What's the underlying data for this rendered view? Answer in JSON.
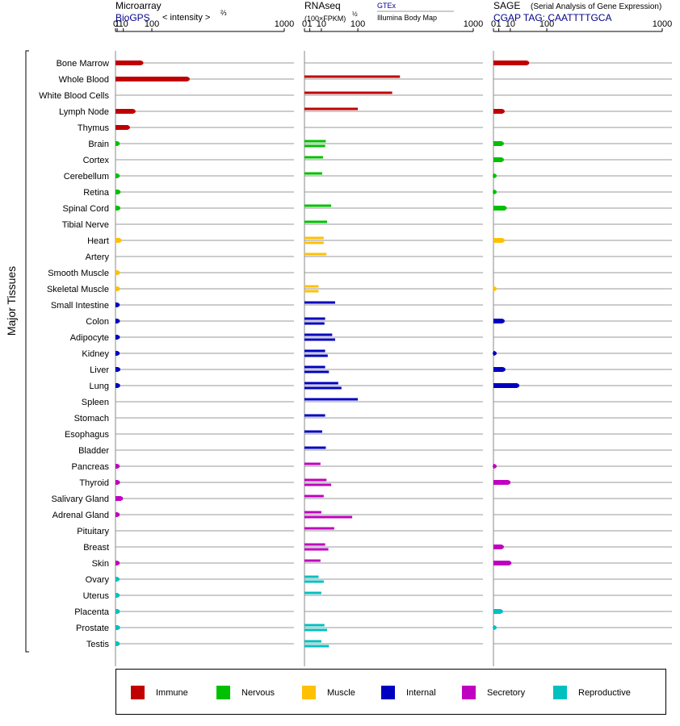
{
  "headers": {
    "microarray": {
      "title": "Microarray",
      "source": "BioGPS",
      "unit": "< intensity >",
      "unit_exp": "⅔"
    },
    "rnaseq": {
      "title": "RNAseq",
      "unit": "(100×FPKM)",
      "unit_exp": "½",
      "legend_a": "GTEx",
      "legend_b": "Illumina Body Map"
    },
    "sage": {
      "title": "SAGE",
      "subtitle": "(Serial Analysis of Gene Expression)",
      "tag": "CGAP  TAG: CAATTTTGCA"
    }
  },
  "y_axis_label": "Major Tissues",
  "colors": {
    "Immune": "#c00000",
    "Nervous": "#00c000",
    "Muscle": "#ffc000",
    "Internal": "#0000c0",
    "Secretory": "#c000c0",
    "Reproductive": "#00c0c0",
    "grid": "#999999",
    "axis": "#000000"
  },
  "legend": [
    "Immune",
    "Nervous",
    "Muscle",
    "Internal",
    "Secretory",
    "Reproductive"
  ],
  "chart_data": {
    "type": "bar",
    "scale": "power",
    "tick_labels": [
      "0",
      "1",
      "10",
      "100",
      "1000"
    ],
    "tick_values": [
      0,
      1,
      10,
      100,
      1000
    ],
    "panels": [
      {
        "id": "microarray",
        "exponent": 0.6667,
        "xlim": [
          0,
          1000
        ],
        "series_per_tissue": 1
      },
      {
        "id": "rnaseq",
        "exponent": 0.5,
        "xlim": [
          0,
          1000
        ],
        "series_per_tissue": 2,
        "series": [
          "GTEx",
          "Illumina Body Map"
        ]
      },
      {
        "id": "sage",
        "exponent": 0.5,
        "xlim": [
          0,
          1000
        ],
        "series_per_tissue": 1
      }
    ],
    "tissues": [
      {
        "name": "Bone Marrow",
        "group": "Immune",
        "microarray": 60,
        "rnaseq": [
          null,
          null
        ],
        "sage": 40
      },
      {
        "name": "Whole Blood",
        "group": "Immune",
        "microarray": 280,
        "rnaseq": [
          null,
          320
        ],
        "sage": null
      },
      {
        "name": "White Blood Cells",
        "group": "Immune",
        "microarray": null,
        "rnaseq": [
          null,
          270
        ],
        "sage": null
      },
      {
        "name": "Lymph Node",
        "group": "Immune",
        "microarray": 35,
        "rnaseq": [
          null,
          100
        ],
        "sage": 3
      },
      {
        "name": "Thymus",
        "group": "Immune",
        "microarray": 20,
        "rnaseq": [
          null,
          null
        ],
        "sage": null
      },
      {
        "name": "Brain",
        "group": "Nervous",
        "microarray": 1.5,
        "rnaseq": [
          16,
          15
        ],
        "sage": 2.5
      },
      {
        "name": "Cortex",
        "group": "Nervous",
        "microarray": null,
        "rnaseq": [
          null,
          12
        ],
        "sage": 2.5
      },
      {
        "name": "Cerebellum",
        "group": "Nervous",
        "microarray": 1.5,
        "rnaseq": [
          null,
          11
        ],
        "sage": 0.05
      },
      {
        "name": "Retina",
        "group": "Nervous",
        "microarray": 2.5,
        "rnaseq": [
          null,
          null
        ],
        "sage": 0.05
      },
      {
        "name": "Spinal Cord",
        "group": "Nervous",
        "microarray": 2.2,
        "rnaseq": [
          null,
          25
        ],
        "sage": 4.5
      },
      {
        "name": "Tibial Nerve",
        "group": "Nervous",
        "microarray": null,
        "rnaseq": [
          null,
          18
        ],
        "sage": null
      },
      {
        "name": "Heart",
        "group": "Muscle",
        "microarray": 4,
        "rnaseq": [
          13,
          13
        ],
        "sage": 3
      },
      {
        "name": "Artery",
        "group": "Muscle",
        "microarray": null,
        "rnaseq": [
          null,
          17
        ],
        "sage": null
      },
      {
        "name": "Smooth Muscle",
        "group": "Muscle",
        "microarray": 1.8,
        "rnaseq": [
          null,
          null
        ],
        "sage": null
      },
      {
        "name": "Skeletal Muscle",
        "group": "Muscle",
        "microarray": 1.8,
        "rnaseq": [
          7,
          7
        ],
        "sage": 0.05
      },
      {
        "name": "Small Intestine",
        "group": "Internal",
        "microarray": 1.5,
        "rnaseq": [
          null,
          33
        ],
        "sage": null
      },
      {
        "name": "Colon",
        "group": "Internal",
        "microarray": 1.7,
        "rnaseq": [
          15,
          14
        ],
        "sage": 3
      },
      {
        "name": "Adipocyte",
        "group": "Internal",
        "microarray": 1.7,
        "rnaseq": [
          27,
          33
        ],
        "sage": null
      },
      {
        "name": "Kidney",
        "group": "Internal",
        "microarray": 1.5,
        "rnaseq": [
          15,
          19
        ],
        "sage": 0.05
      },
      {
        "name": "Liver",
        "group": "Internal",
        "microarray": 2.2,
        "rnaseq": [
          15,
          21
        ],
        "sage": 3.5
      },
      {
        "name": "Lung",
        "group": "Internal",
        "microarray": 2,
        "rnaseq": [
          40,
          48
        ],
        "sage": 20
      },
      {
        "name": "Spleen",
        "group": "Internal",
        "microarray": null,
        "rnaseq": [
          null,
          100
        ],
        "sage": null
      },
      {
        "name": "Stomach",
        "group": "Internal",
        "microarray": null,
        "rnaseq": [
          null,
          15
        ],
        "sage": null
      },
      {
        "name": "Esophagus",
        "group": "Internal",
        "microarray": null,
        "rnaseq": [
          null,
          11
        ],
        "sage": null
      },
      {
        "name": "Bladder",
        "group": "Internal",
        "microarray": null,
        "rnaseq": [
          null,
          16
        ],
        "sage": null
      },
      {
        "name": "Pancreas",
        "group": "Secretory",
        "microarray": 1.5,
        "rnaseq": [
          null,
          9
        ],
        "sage": 0.05
      },
      {
        "name": "Thyroid",
        "group": "Secretory",
        "microarray": 1.8,
        "rnaseq": [
          17,
          25
        ],
        "sage": 8
      },
      {
        "name": "Salivary Gland",
        "group": "Secretory",
        "microarray": 6,
        "rnaseq": [
          null,
          13
        ],
        "sage": null
      },
      {
        "name": "Adrenal Gland",
        "group": "Secretory",
        "microarray": 1.5,
        "rnaseq": [
          10,
          80
        ],
        "sage": null
      },
      {
        "name": "Pituitary",
        "group": "Secretory",
        "microarray": null,
        "rnaseq": [
          null,
          31
        ],
        "sage": null
      },
      {
        "name": "Breast",
        "group": "Secretory",
        "microarray": null,
        "rnaseq": [
          15,
          20
        ],
        "sage": 2.5
      },
      {
        "name": "Skin",
        "group": "Secretory",
        "microarray": 1.5,
        "rnaseq": [
          null,
          9
        ],
        "sage": 9
      },
      {
        "name": "Ovary",
        "group": "Reproductive",
        "microarray": 1.3,
        "rnaseq": [
          7,
          13
        ],
        "sage": null
      },
      {
        "name": "Uterus",
        "group": "Reproductive",
        "microarray": 1.5,
        "rnaseq": [
          null,
          10
        ],
        "sage": null
      },
      {
        "name": "Placenta",
        "group": "Reproductive",
        "microarray": 1.7,
        "rnaseq": [
          null,
          null
        ],
        "sage": 2
      },
      {
        "name": "Prostate",
        "group": "Reproductive",
        "microarray": 1.9,
        "rnaseq": [
          14,
          18
        ],
        "sage": 0.05
      },
      {
        "name": "Testis",
        "group": "Reproductive",
        "microarray": 1.5,
        "rnaseq": [
          10,
          21
        ],
        "sage": null
      }
    ]
  }
}
